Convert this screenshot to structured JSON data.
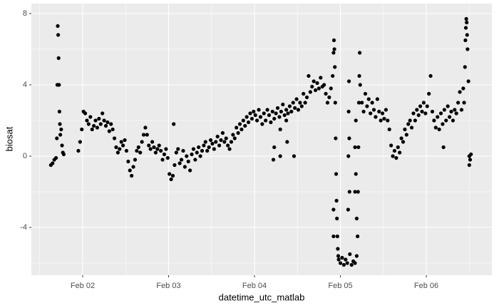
{
  "chart_data": {
    "type": "scatter",
    "x_label": "datetime_utc_matlab",
    "y_label": "biosat",
    "color": "#000000",
    "grid": true,
    "xlim": [
      1.403,
      6.763
    ],
    "ylim": [
      -6.68,
      8.56
    ],
    "xticks": [
      {
        "value": 2,
        "label": "Feb 02"
      },
      {
        "value": 3,
        "label": "Feb 03"
      },
      {
        "value": 4,
        "label": "Feb 04"
      },
      {
        "value": 5,
        "label": "Feb 05"
      },
      {
        "value": 6,
        "label": "Feb 06"
      }
    ],
    "yticks": [
      -4,
      0,
      4,
      8
    ],
    "x": [
      1.63,
      1.65,
      1.67,
      1.69,
      1.7,
      1.705,
      1.71,
      1.715,
      1.72,
      1.725,
      1.73,
      1.735,
      1.74,
      1.75,
      1.76,
      1.77,
      1.78,
      1.95,
      1.97,
      1.99,
      2.01,
      2.03,
      2.05,
      2.07,
      2.09,
      2.11,
      2.13,
      2.15,
      2.17,
      2.19,
      2.21,
      2.23,
      2.25,
      2.27,
      2.29,
      2.31,
      2.33,
      2.35,
      2.37,
      2.39,
      2.41,
      2.43,
      2.45,
      2.47,
      2.49,
      2.51,
      2.53,
      2.55,
      2.57,
      2.59,
      2.61,
      2.63,
      2.65,
      2.67,
      2.69,
      2.71,
      2.73,
      2.75,
      2.77,
      2.79,
      2.81,
      2.83,
      2.85,
      2.87,
      2.89,
      2.91,
      2.93,
      2.95,
      2.97,
      2.99,
      3.01,
      3.03,
      3.05,
      3.07,
      3.09,
      3.11,
      3.13,
      3.15,
      3.17,
      3.19,
      3.21,
      3.23,
      3.25,
      3.27,
      3.29,
      3.31,
      3.33,
      3.35,
      3.37,
      3.39,
      3.41,
      3.43,
      3.45,
      3.47,
      3.49,
      3.51,
      3.53,
      3.55,
      3.57,
      3.59,
      3.61,
      3.63,
      3.65,
      3.67,
      3.69,
      3.71,
      3.73,
      3.75,
      3.77,
      3.79,
      3.81,
      3.83,
      3.85,
      3.87,
      3.89,
      3.91,
      3.93,
      3.95,
      3.97,
      3.99,
      4.01,
      4.03,
      4.05,
      4.07,
      4.09,
      4.11,
      4.13,
      4.15,
      4.17,
      4.19,
      4.21,
      4.23,
      4.25,
      4.27,
      4.29,
      4.31,
      4.33,
      4.35,
      4.37,
      4.39,
      4.41,
      4.43,
      4.45,
      4.47,
      4.49,
      4.51,
      4.53,
      4.55,
      4.57,
      4.59,
      4.61,
      4.63,
      4.65,
      4.67,
      4.69,
      4.71,
      4.73,
      4.75,
      4.77,
      4.79,
      4.81,
      4.83,
      4.85,
      4.87,
      4.89,
      4.91,
      4.92,
      4.925,
      4.93,
      4.935,
      4.94,
      4.945,
      4.95,
      4.955,
      4.96,
      4.965,
      4.97,
      4.975,
      4.98,
      5.0,
      5.02,
      5.04,
      5.06,
      5.08,
      5.09,
      5.093,
      5.096,
      5.1,
      5.103,
      5.106,
      5.11,
      5.13,
      5.15,
      5.17,
      5.19,
      5.2,
      5.205,
      5.21,
      5.215,
      5.22,
      5.225,
      5.23,
      5.25,
      5.27,
      5.29,
      5.31,
      5.33,
      5.35,
      5.37,
      5.39,
      5.41,
      5.43,
      5.45,
      5.47,
      5.49,
      5.51,
      5.53,
      5.55,
      5.57,
      5.59,
      5.61,
      5.63,
      5.65,
      5.67,
      5.69,
      5.71,
      5.73,
      5.75,
      5.77,
      5.79,
      5.81,
      5.83,
      5.85,
      5.87,
      5.89,
      5.91,
      5.93,
      5.95,
      5.97,
      5.99,
      6.01,
      6.03,
      6.05,
      6.07,
      6.09,
      6.11,
      6.13,
      6.15,
      6.17,
      6.19,
      6.21,
      6.23,
      6.25,
      6.27,
      6.29,
      6.31,
      6.33,
      6.35,
      6.37,
      6.39,
      6.41,
      6.43,
      6.44,
      6.45,
      6.455,
      6.46,
      6.465,
      6.47,
      6.475,
      6.48,
      6.49,
      6.5,
      6.51,
      6.52,
      4.22,
      4.23,
      4.3,
      4.3,
      4.37,
      4.38,
      4.46,
      4.92,
      4.92,
      5.17,
      5.17,
      5.18,
      5.18,
      5.19,
      3.06,
      6.5,
      6.2
    ],
    "values": [
      -0.5,
      -0.4,
      -0.2,
      -0.1,
      1.0,
      4.0,
      7.3,
      6.8,
      5.5,
      4.0,
      2.5,
      1.8,
      1.2,
      1.5,
      0.6,
      0.2,
      0.1,
      0.3,
      0.8,
      1.5,
      2.5,
      2.4,
      2.0,
      1.8,
      2.2,
      1.5,
      1.7,
      2.0,
      1.6,
      2.1,
      1.8,
      2.4,
      2.0,
      1.7,
      1.9,
      1.4,
      1.8,
      1.5,
      1.0,
      0.5,
      0.2,
      0.4,
      0.8,
      0.6,
      0.9,
      0.3,
      -0.3,
      -0.8,
      -1.1,
      -0.6,
      -0.2,
      0.3,
      0.5,
      0.2,
      0.8,
      1.2,
      1.6,
      1.2,
      0.6,
      0.4,
      0.8,
      0.5,
      0.2,
      0.4,
      0.6,
      0.3,
      -0.2,
      0.1,
      0.4,
      -0.1,
      -1.0,
      -1.3,
      -1.1,
      -0.5,
      0.2,
      0.4,
      -0.4,
      -0.2,
      0.3,
      -0.6,
      0.0,
      -0.3,
      -0.8,
      0.1,
      0.4,
      -0.2,
      0.2,
      0.5,
      0.0,
      0.3,
      0.6,
      0.8,
      0.3,
      0.5,
      0.9,
      0.7,
      0.4,
      0.8,
      1.1,
      0.6,
      0.9,
      1.3,
      0.8,
      1.0,
      0.6,
      0.4,
      0.8,
      1.2,
      1.0,
      1.6,
      1.3,
      1.8,
      1.5,
      2.0,
      1.7,
      2.2,
      1.9,
      2.4,
      2.1,
      2.5,
      2.3,
      2.0,
      2.6,
      2.2,
      1.8,
      2.4,
      2.0,
      2.6,
      2.3,
      1.9,
      2.5,
      2.1,
      2.4,
      2.7,
      2.2,
      2.5,
      2.9,
      2.3,
      2.6,
      2.4,
      2.8,
      2.5,
      3.0,
      2.7,
      3.2,
      2.6,
      3.0,
      2.8,
      3.5,
      3.0,
      3.3,
      4.5,
      3.6,
      3.9,
      4.2,
      3.7,
      4.1,
      3.8,
      4.4,
      3.9,
      4.0,
      3.5,
      3.0,
      3.3,
      3.8,
      4.5,
      5.8,
      6.5,
      6.0,
      5.0,
      3.0,
      1.0,
      -1.0,
      -2.5,
      -3.5,
      -4.5,
      -5.2,
      -5.6,
      -5.8,
      -6.0,
      -5.7,
      -6.1,
      -5.8,
      -6.0,
      -3.0,
      0.0,
      2.5,
      4.2,
      1.0,
      -2.0,
      -5.5,
      -6.1,
      -5.9,
      -6.0,
      -5.6,
      -4.5,
      -2.0,
      0.5,
      3.0,
      4.5,
      5.8,
      4.0,
      3.0,
      2.5,
      3.5,
      2.8,
      3.2,
      2.4,
      3.0,
      2.6,
      2.2,
      3.2,
      2.5,
      2.0,
      2.4,
      2.1,
      2.6,
      2.0,
      1.5,
      0.6,
      0.0,
      0.3,
      -0.1,
      0.5,
      0.2,
      1.0,
      0.8,
      1.5,
      1.2,
      1.8,
      2.0,
      1.6,
      2.4,
      2.0,
      2.6,
      2.3,
      2.8,
      2.5,
      3.0,
      2.4,
      2.8,
      3.5,
      4.5,
      2.5,
      2.0,
      1.6,
      2.2,
      1.5,
      2.4,
      1.8,
      2.6,
      2.0,
      2.8,
      2.2,
      2.5,
      2.0,
      2.6,
      2.4,
      3.0,
      3.6,
      2.6,
      3.8,
      3.0,
      5.0,
      6.5,
      7.2,
      7.7,
      7.5,
      6.8,
      6.0,
      4.2,
      0.0,
      -0.2,
      0.1,
      -0.2,
      0.5,
      1.5,
      0.0,
      2.0,
      0.8,
      0.0,
      -3.0,
      -4.5,
      -2.0,
      0.5,
      -1.0,
      2.0,
      -3.5,
      1.8,
      -0.5,
      0.5
    ]
  }
}
